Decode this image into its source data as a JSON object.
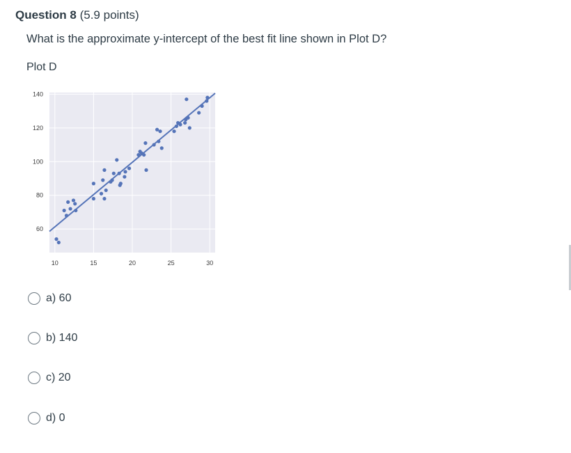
{
  "question": {
    "number_label": "Question 8",
    "points_label": "(5.9 points)",
    "prompt": "What is the approximate y-intercept of the best fit line shown in Plot D?",
    "plot_title": "Plot D"
  },
  "options": [
    {
      "label": "a) 60"
    },
    {
      "label": "b) 140"
    },
    {
      "label": "c) 20"
    },
    {
      "label": "d) 0"
    }
  ],
  "chart_data": {
    "type": "scatter",
    "title": "",
    "xlabel": "",
    "ylabel": "",
    "xlim": [
      9.3,
      30.7
    ],
    "ylim": [
      46,
      141
    ],
    "xticks": [
      10,
      15,
      20,
      25,
      30
    ],
    "yticks": [
      60,
      80,
      100,
      120,
      140
    ],
    "grid": true,
    "colors": {
      "point": "#5574b8",
      "line": "#5574b8",
      "background": "#eaeaf2",
      "grid": "#ffffff"
    },
    "points": [
      {
        "x": 10.2,
        "y": 54
      },
      {
        "x": 10.5,
        "y": 52
      },
      {
        "x": 11.2,
        "y": 71
      },
      {
        "x": 11.5,
        "y": 68
      },
      {
        "x": 11.7,
        "y": 76
      },
      {
        "x": 12.0,
        "y": 72
      },
      {
        "x": 12.4,
        "y": 77
      },
      {
        "x": 12.6,
        "y": 75
      },
      {
        "x": 12.7,
        "y": 71
      },
      {
        "x": 15.0,
        "y": 87
      },
      {
        "x": 15.0,
        "y": 78
      },
      {
        "x": 16.0,
        "y": 81
      },
      {
        "x": 16.2,
        "y": 89
      },
      {
        "x": 16.4,
        "y": 95
      },
      {
        "x": 16.4,
        "y": 78
      },
      {
        "x": 16.6,
        "y": 83
      },
      {
        "x": 17.2,
        "y": 88
      },
      {
        "x": 17.4,
        "y": 89
      },
      {
        "x": 17.6,
        "y": 93
      },
      {
        "x": 18.0,
        "y": 101
      },
      {
        "x": 18.3,
        "y": 93
      },
      {
        "x": 18.4,
        "y": 86
      },
      {
        "x": 18.5,
        "y": 87
      },
      {
        "x": 19.0,
        "y": 91
      },
      {
        "x": 19.1,
        "y": 94
      },
      {
        "x": 19.6,
        "y": 96
      },
      {
        "x": 20.8,
        "y": 104
      },
      {
        "x": 21.0,
        "y": 106
      },
      {
        "x": 21.2,
        "y": 105
      },
      {
        "x": 21.5,
        "y": 104
      },
      {
        "x": 21.7,
        "y": 111
      },
      {
        "x": 21.8,
        "y": 95
      },
      {
        "x": 22.8,
        "y": 110
      },
      {
        "x": 23.2,
        "y": 119
      },
      {
        "x": 23.4,
        "y": 112
      },
      {
        "x": 23.6,
        "y": 118
      },
      {
        "x": 23.8,
        "y": 108
      },
      {
        "x": 25.4,
        "y": 118
      },
      {
        "x": 25.7,
        "y": 121
      },
      {
        "x": 25.9,
        "y": 123
      },
      {
        "x": 26.2,
        "y": 122
      },
      {
        "x": 26.8,
        "y": 123
      },
      {
        "x": 26.9,
        "y": 125
      },
      {
        "x": 27.0,
        "y": 137
      },
      {
        "x": 27.2,
        "y": 126
      },
      {
        "x": 27.4,
        "y": 120
      },
      {
        "x": 28.6,
        "y": 129
      },
      {
        "x": 29.0,
        "y": 133
      },
      {
        "x": 29.6,
        "y": 136
      },
      {
        "x": 29.7,
        "y": 138
      }
    ],
    "fit_line": {
      "x": [
        9.3,
        30.7
      ],
      "y": [
        58.6,
        140.6
      ]
    }
  }
}
